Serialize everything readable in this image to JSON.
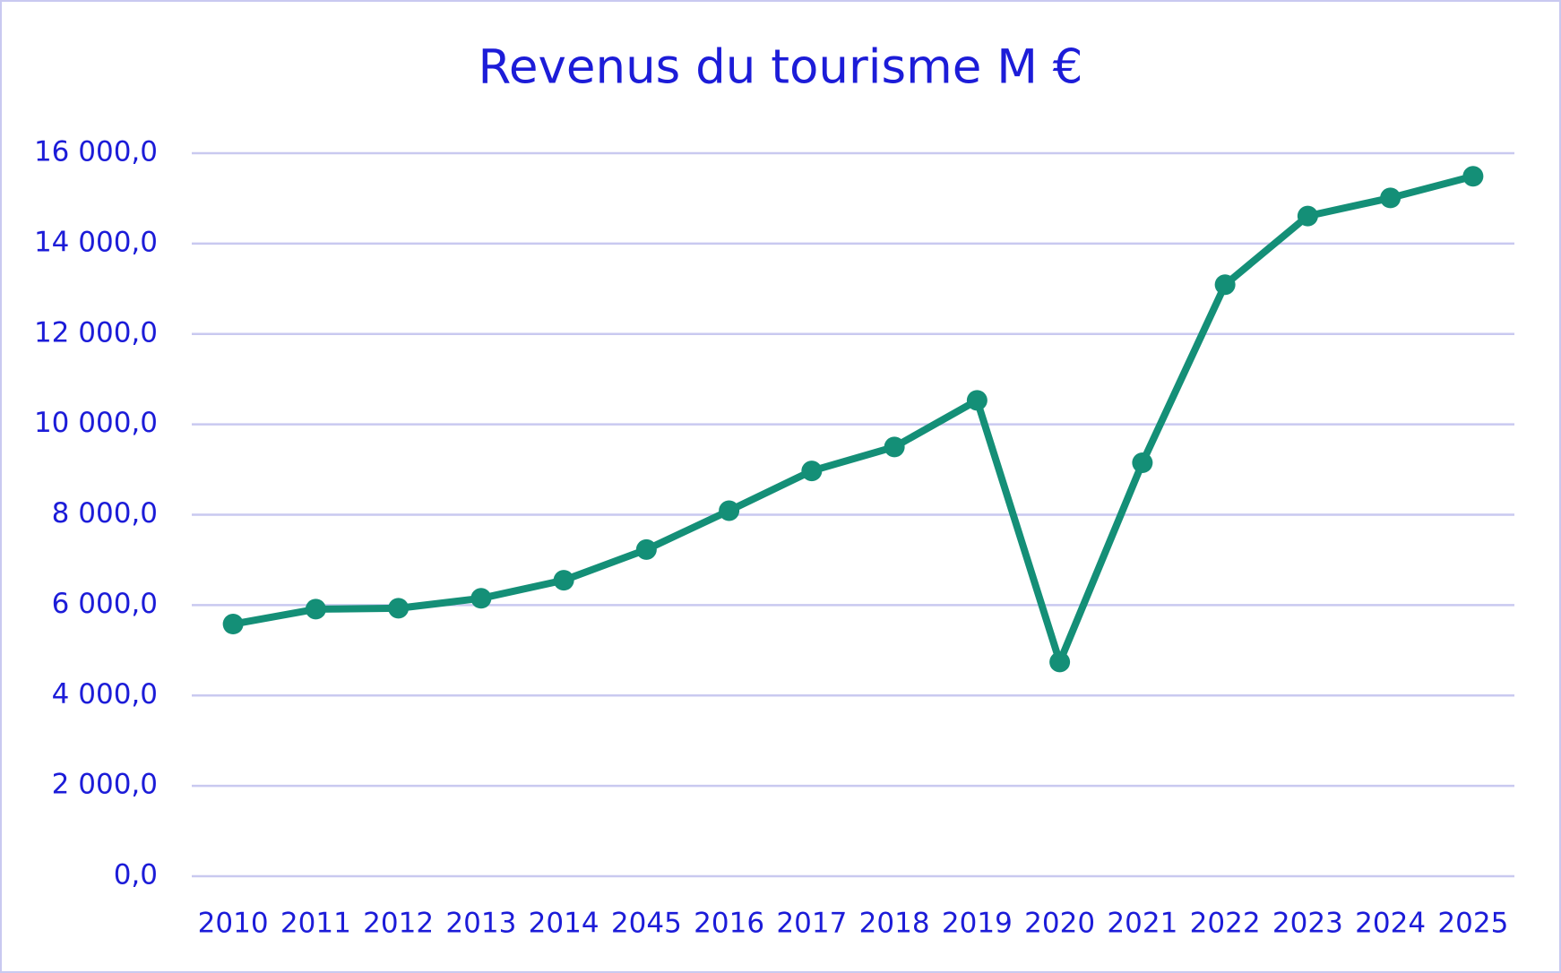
{
  "chart_data": {
    "type": "line",
    "title": "Revenus du tourisme M €",
    "categories": [
      "2010",
      "2011",
      "2012",
      "2013",
      "2014",
      "2045",
      "2016",
      "2017",
      "2018",
      "2019",
      "2020",
      "2021",
      "2022",
      "2023",
      "2024",
      "2025"
    ],
    "series": [
      {
        "color": "#148f77",
        "values": [
          5580,
          5910,
          5930,
          6150,
          6550,
          7230,
          8090,
          8970,
          9500,
          10530,
          4740,
          9150,
          13090,
          14610,
          15010,
          15490
        ]
      }
    ],
    "ylim": [
      0,
      16000
    ],
    "yticks": [
      {
        "value": 0,
        "label": "0,0"
      },
      {
        "value": 2000,
        "label": "2 000,0"
      },
      {
        "value": 4000,
        "label": "4 000,0"
      },
      {
        "value": 6000,
        "label": "6 000,0"
      },
      {
        "value": 8000,
        "label": "8 000,0"
      },
      {
        "value": 10000,
        "label": "10 000,0"
      },
      {
        "value": 12000,
        "label": "12 000,0"
      },
      {
        "value": 14000,
        "label": "14 000,0"
      },
      {
        "value": 16000,
        "label": "16 000,0"
      }
    ],
    "grid": true
  }
}
